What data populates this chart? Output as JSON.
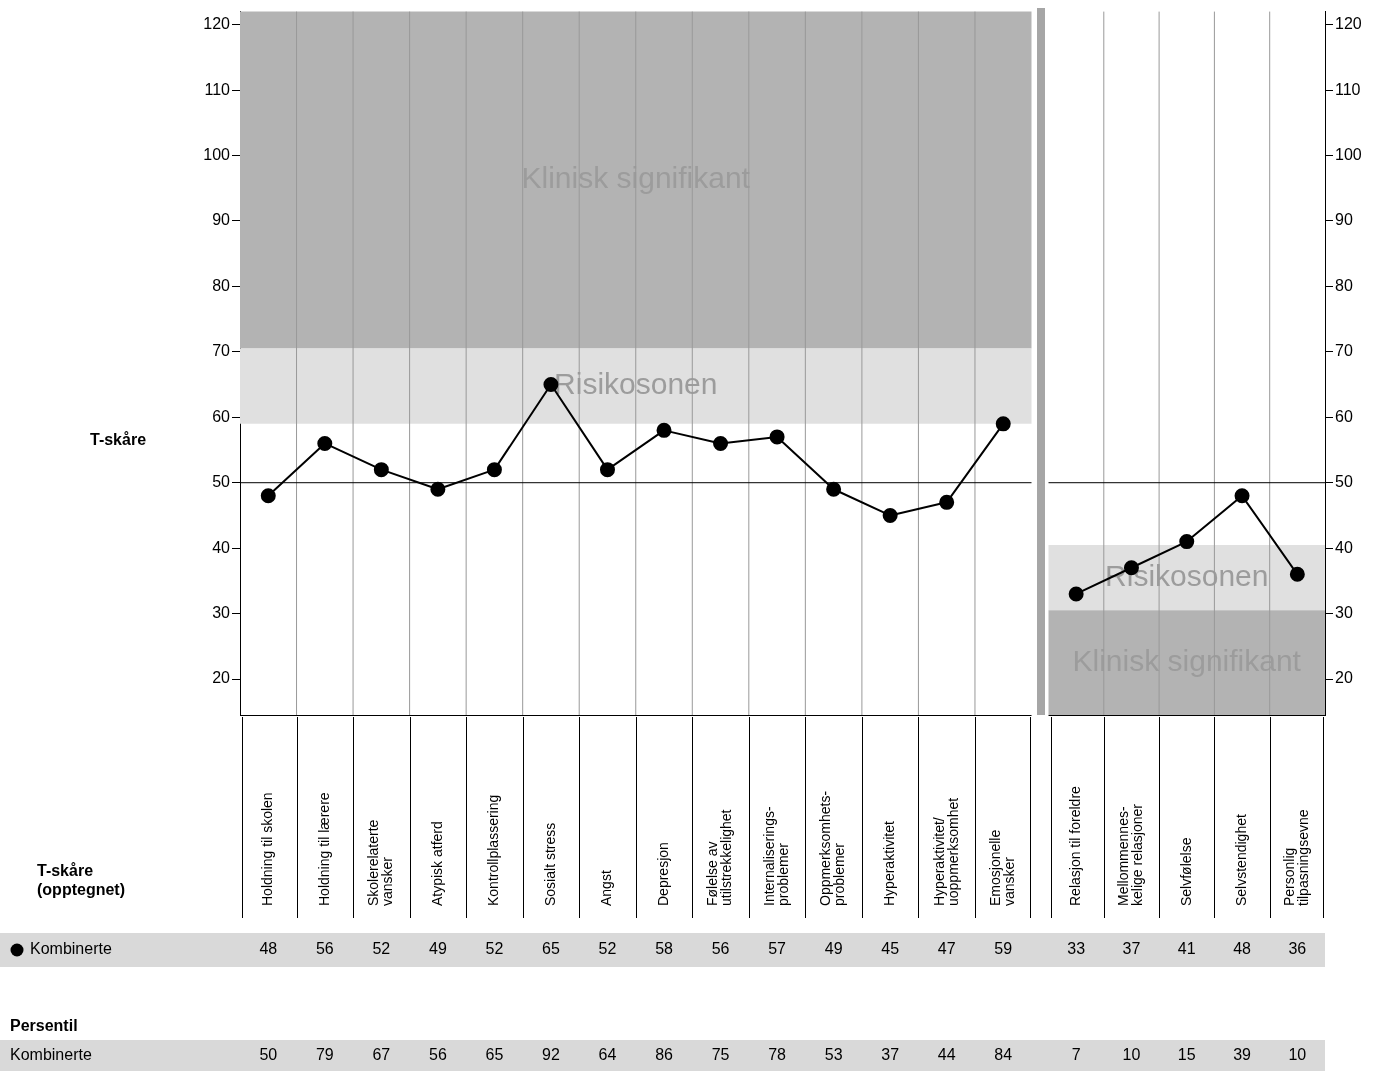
{
  "chart_data": [
    {
      "type": "line",
      "ylabel": "T-skåre",
      "categories": [
        "Holdning til skolen",
        "Holdning til lærere",
        "Skolerelaterte\nvansker",
        "Atypisk atferd",
        "Kontrollplassering",
        "Sosialt stress",
        "Angst",
        "Depresjon",
        "Følelse av\nutilstrekkelighet",
        "Internaliserings-\nproblemer",
        "Oppmerksomhets-\nproblemer",
        "Hyperaktivitet",
        "Hyperaktivitet/\nuoppmerksomhet",
        "Emosjonelle\nvansker"
      ],
      "series": [
        {
          "name": "Kombinerte",
          "color": "#000000",
          "values": [
            48,
            56,
            52,
            49,
            52,
            65,
            52,
            58,
            56,
            57,
            49,
            45,
            47,
            59
          ]
        }
      ],
      "ylim": [
        14.5,
        122
      ],
      "yticks": [
        20,
        30,
        40,
        50,
        60,
        70,
        80,
        90,
        100,
        110,
        120
      ],
      "bands": [
        {
          "axis": "y",
          "from": 70.5,
          "to": 122,
          "label": "Klinisk signifikant",
          "color": "#b3b3b3"
        },
        {
          "axis": "y",
          "from": 59,
          "to": 70.5,
          "label": "Risikosonen",
          "color": "#e0e0e0"
        }
      ],
      "ref_lines": [
        {
          "axis": "y",
          "value": 50,
          "color": "#000000"
        }
      ],
      "grid": "x",
      "marker": "circle",
      "line_style": "solid",
      "legend": "bottom left",
      "data_labels": true,
      "annotations": [
        "T-skåre\n(opptegnet)",
        "Persentil",
        "Kombinerte",
        "50",
        "79",
        "67",
        "56",
        "65",
        "92",
        "64",
        "86",
        "75",
        "78",
        "53",
        "37",
        "44",
        "84"
      ]
    },
    {
      "type": "line",
      "categories": [
        "Relasjon til foreldre",
        "Mellommennes-\nkelige relasjoner",
        "Selvfølelse",
        "Selvstendighet",
        "Personlig\ntilpasningsevne"
      ],
      "series": [
        {
          "color": "#000000",
          "values": [
            33,
            37,
            41,
            48,
            36
          ]
        }
      ],
      "ylim": [
        14.5,
        122
      ],
      "yticks": [
        20,
        30,
        40,
        50,
        60,
        70,
        80,
        90,
        100,
        110,
        120
      ],
      "bands": [
        {
          "axis": "y",
          "from": 30.5,
          "to": 40.5,
          "label": "Risikosonen",
          "color": "#e0e0e0"
        },
        {
          "axis": "y",
          "from": 14.5,
          "to": 30.5,
          "label": "Klinisk signifikant",
          "color": "#b3b3b3"
        }
      ],
      "ref_lines": [
        {
          "axis": "y",
          "value": 50,
          "color": "#000000"
        }
      ],
      "grid": "x",
      "marker": "circle",
      "line_style": "solid",
      "data_labels": true,
      "annotations": [
        "7",
        "10",
        "15",
        "39",
        "10"
      ]
    }
  ]
}
